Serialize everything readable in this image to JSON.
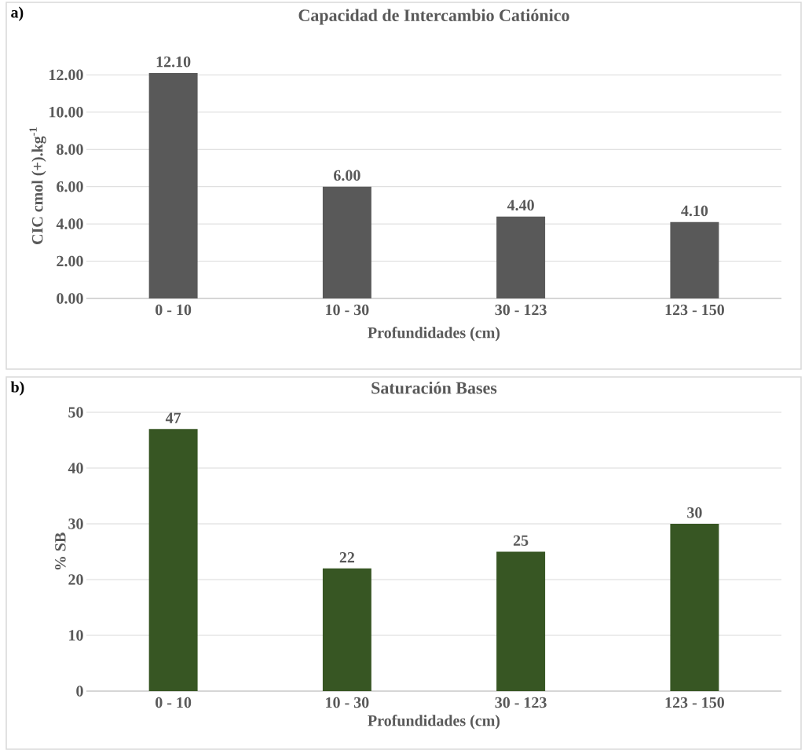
{
  "chart_data": [
    {
      "type": "bar",
      "title": "Capacidad de Intercambio Catiónico",
      "xlabel": "Profundidades (cm)",
      "ylabel": "CIC cmol (+).kg$^{-1}$",
      "annotations": [
        "a)"
      ],
      "categories": [
        "0 - 10",
        "10 - 30",
        "30 - 123",
        "123 - 150"
      ],
      "values": [
        12.1,
        6.0,
        4.4,
        4.1
      ],
      "value_labels": [
        "12.10",
        "6.00",
        "4.40",
        "4.10"
      ],
      "color": "#595959",
      "ylim": [
        0,
        12.1
      ],
      "yticks": [
        {
          "value": 0,
          "label": "0.00"
        },
        {
          "value": 2,
          "label": "2.00"
        },
        {
          "value": 4,
          "label": "4.00"
        },
        {
          "value": 6,
          "label": "6.00"
        },
        {
          "value": 8,
          "label": "8.00"
        },
        {
          "value": 10,
          "label": "10.00"
        },
        {
          "value": 12,
          "label": "12.00"
        }
      ],
      "grid": "y"
    },
    {
      "type": "bar",
      "title": "Saturación Bases",
      "xlabel": "Profundidades (cm)",
      "ylabel": "% SB",
      "annotations": [
        "b)"
      ],
      "categories": [
        "0 - 10",
        "10 - 30",
        "30 - 123",
        "123 - 150"
      ],
      "values": [
        47,
        22,
        25,
        30
      ],
      "data_labels": true,
      "color": "#375623",
      "ylim": [
        0,
        50
      ],
      "yticks": [
        0,
        10,
        20,
        30,
        40,
        50
      ],
      "grid": "y"
    }
  ]
}
